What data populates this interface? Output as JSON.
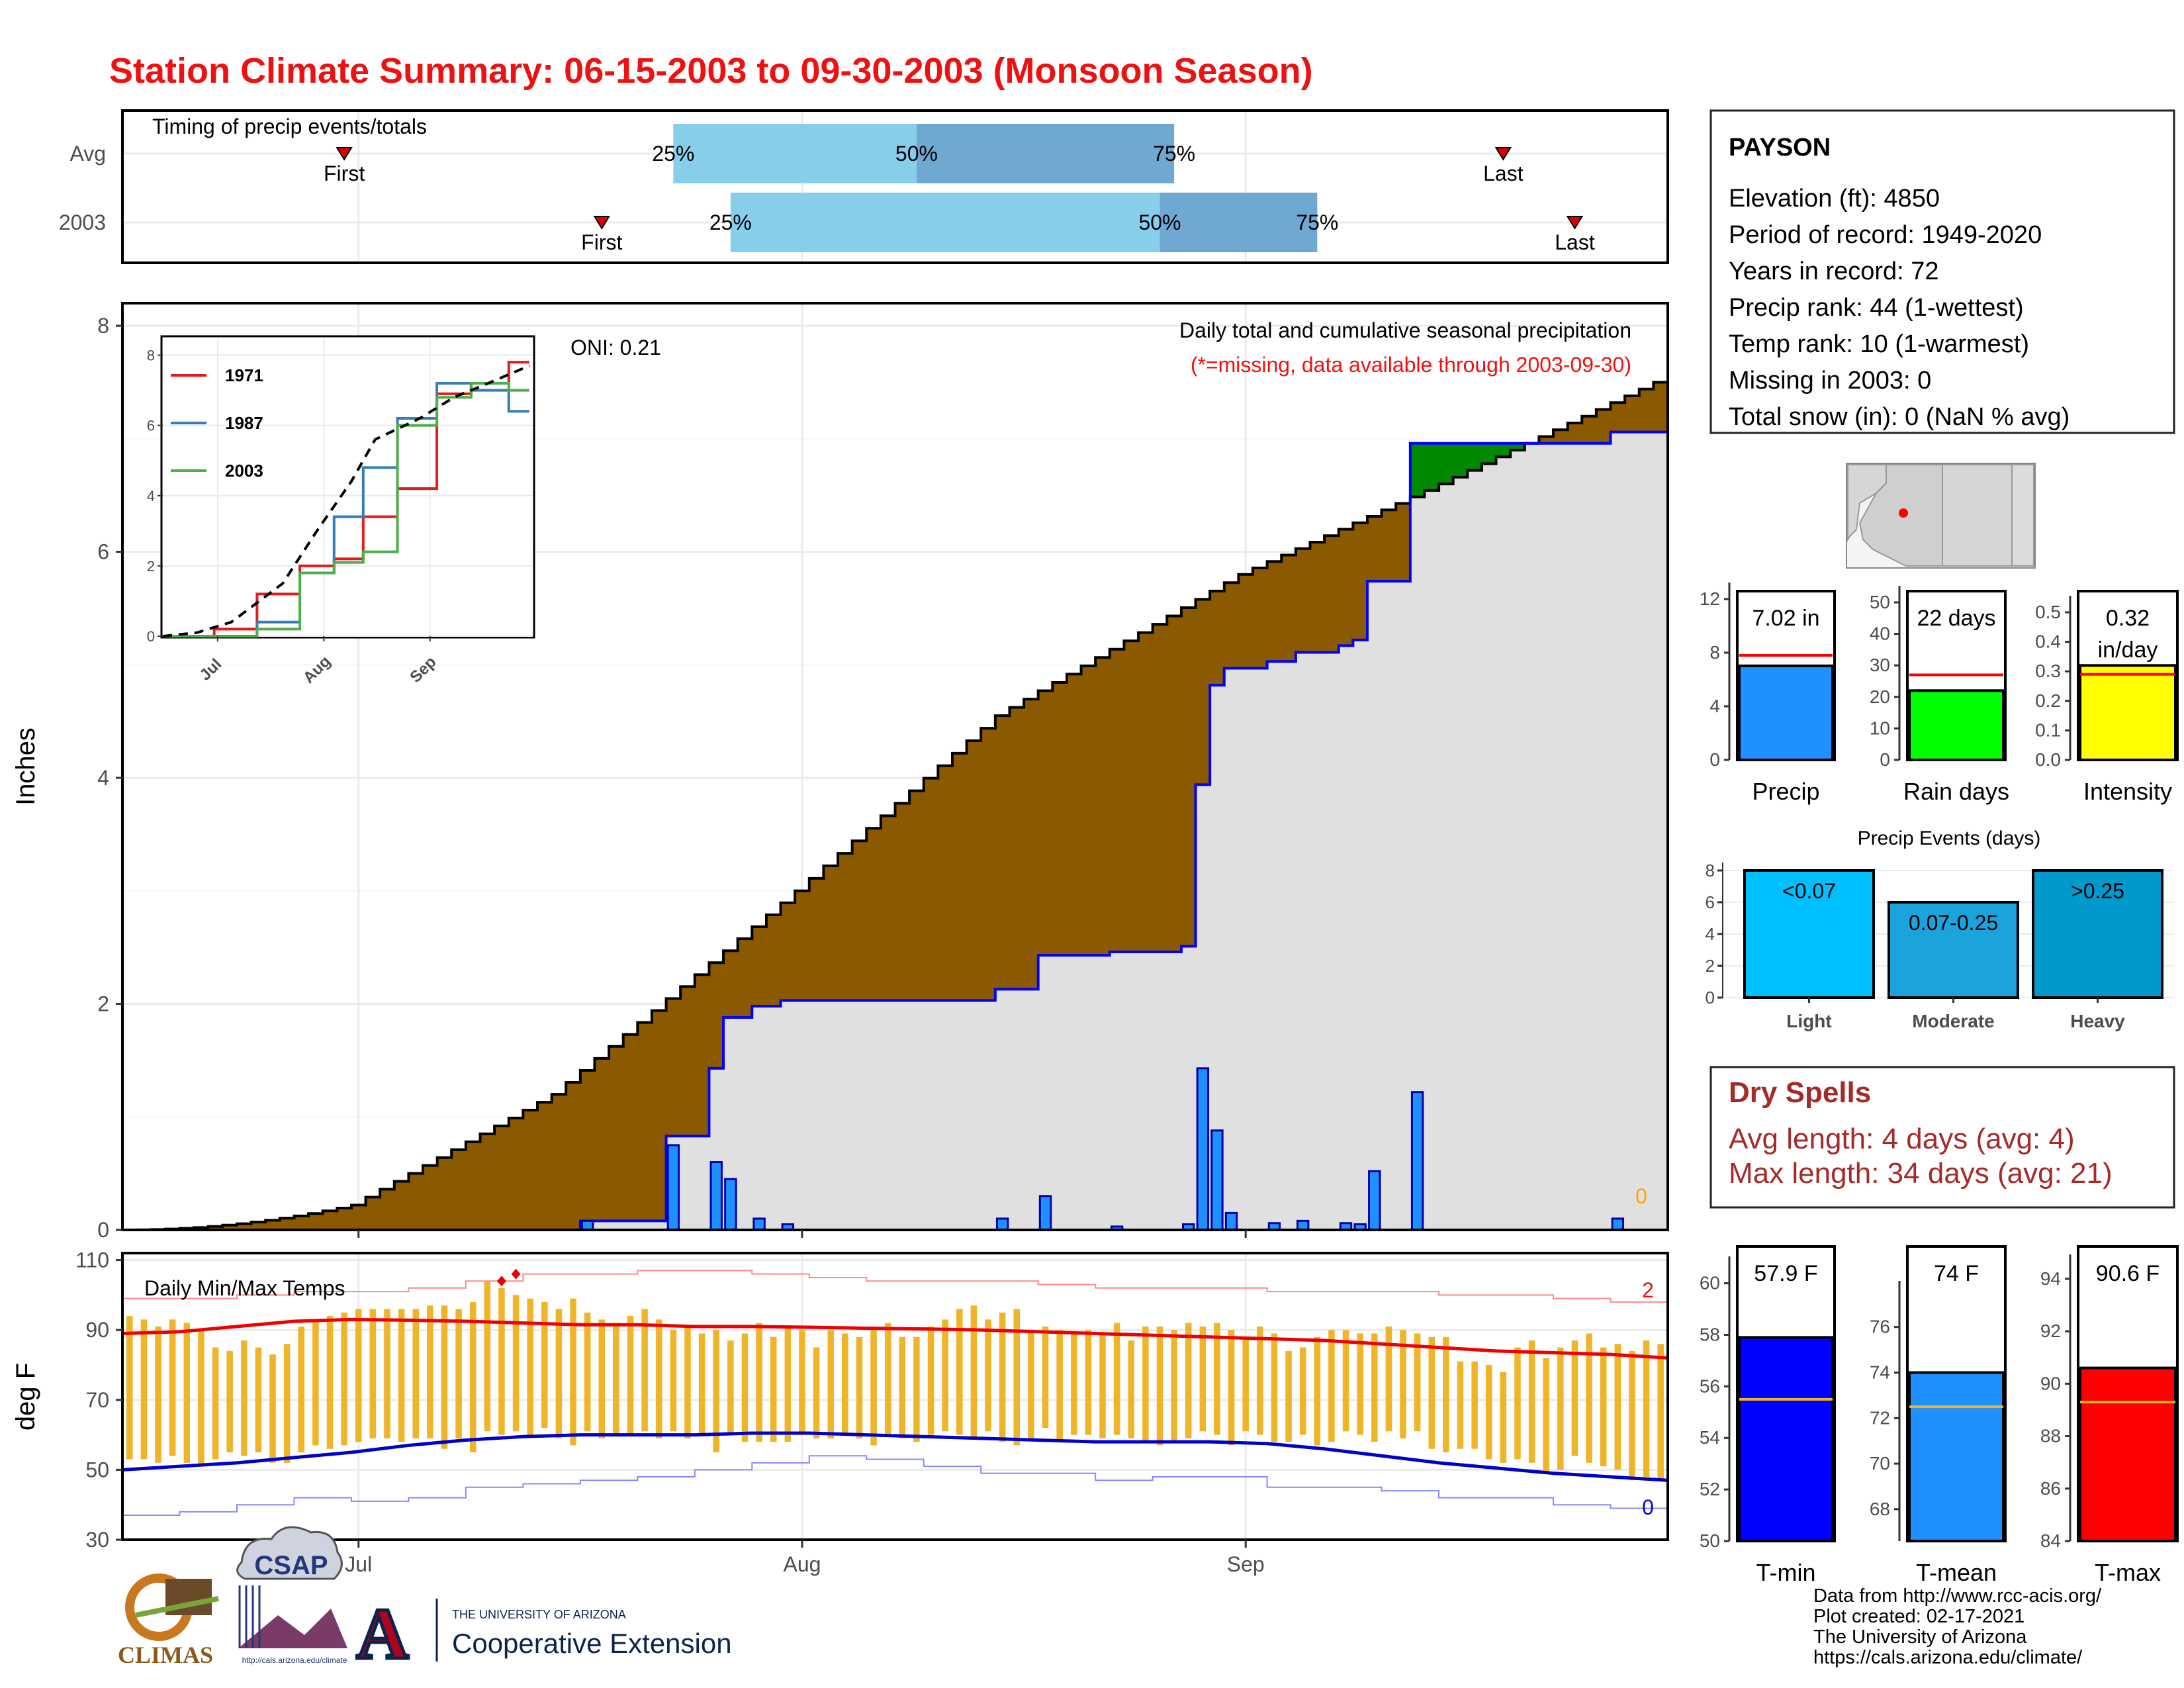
{
  "title": "Station Climate Summary: 06-15-2003 to 09-30-2003 (Monsoon Season)",
  "colors": {
    "title": "#ee1111",
    "cum_fill": "#8b5a00",
    "surplus_fill": "#008800",
    "avg_area": "#e0e0e0",
    "daily_bar": "#1e90ff",
    "avg_line": "#0000ff",
    "temp_bar": "#f0b429",
    "q_light": "#87ceeb",
    "q_dark": "#6fa8d0"
  },
  "station": {
    "name": "PAYSON",
    "lines": [
      "Elevation (ft): 4850",
      "Period of record: 1949-2020",
      "Years in record: 72",
      "Precip rank: 44 (1-wettest)",
      "Temp rank: 10 (1-warmest)",
      "Missing in 2003: 0",
      "Total snow (in): 0 (NaN % avg)"
    ]
  },
  "timing": {
    "label": "Timing of precip events/totals",
    "rows": [
      "Avg",
      "2003"
    ],
    "first_label": "First",
    "last_label": "Last",
    "q_labels": [
      "25%",
      "50%",
      "75%"
    ],
    "avg": {
      "first": "2003-06-30",
      "q25": "2003-07-23",
      "q50": "2003-08-09",
      "q75": "2003-08-27",
      "last": "2003-09-19"
    },
    "y2003": {
      "first": "2003-07-18",
      "q25": "2003-07-27",
      "q50": "2003-08-26",
      "q75": "2003-09-06",
      "last": "2003-09-24"
    }
  },
  "main": {
    "ylabel": "Inches",
    "yticks": [
      0,
      2,
      4,
      6,
      8
    ],
    "xticks": [
      "Jul",
      "Aug",
      "Sep"
    ],
    "oni": "ONI: 0.21",
    "desc1": "Daily total and cumulative seasonal precipitation",
    "desc2": "(*=missing, data available through 2003-09-30)",
    "missing_count": "0"
  },
  "inset": {
    "yticks": [
      "0",
      "2",
      "4",
      "6",
      "8"
    ],
    "xticks": [
      "Jul",
      "Aug",
      "Sep"
    ],
    "legend": [
      {
        "name": "1971",
        "color": "#e41a1c"
      },
      {
        "name": "1987",
        "color": "#377eb8"
      },
      {
        "name": "2003",
        "color": "#4daf4a"
      }
    ]
  },
  "temps": {
    "ylabel": "deg F",
    "label": "Daily Min/Max Temps",
    "yticks": [
      30,
      50,
      70,
      90,
      110
    ],
    "xticks": [
      "Jul",
      "Aug",
      "Sep"
    ],
    "record_high_count": "2",
    "record_low_count": "0"
  },
  "gauges": {
    "precip": {
      "value_label": "7.02 in",
      "axis_label": "Precip",
      "yticks": [
        "0",
        "4",
        "8",
        "12"
      ]
    },
    "rain_days": {
      "value_label": "22 days",
      "axis_label": "Rain days",
      "yticks": [
        "0",
        "10",
        "20",
        "30",
        "40",
        "50"
      ]
    },
    "intensity": {
      "value_label1": "0.32",
      "value_label2": "in/day",
      "axis_label": "Intensity",
      "yticks": [
        "0.0",
        "0.1",
        "0.2",
        "0.3",
        "0.4",
        "0.5"
      ]
    }
  },
  "events": {
    "title": "Precip Events (days)",
    "yticks": [
      "0",
      "2",
      "4",
      "6",
      "8"
    ],
    "bars": [
      {
        "label": "<0.07",
        "axis": "Light",
        "color": "#00bfff"
      },
      {
        "label": "0.07-0.25",
        "axis": "Moderate",
        "color": "#1aa3dd"
      },
      {
        "label": ">0.25",
        "axis": "Heavy",
        "color": "#0099cc"
      }
    ]
  },
  "dry": {
    "title": "Dry Spells",
    "avg_line": "Avg length: 4 days (avg: 4)",
    "max_line": "Max length: 34 days (avg: 21)"
  },
  "temp_gauges": {
    "tmin": {
      "value_label": "57.9 F",
      "axis_label": "T-min",
      "yticks": [
        "50",
        "52",
        "54",
        "56",
        "58",
        "60"
      ]
    },
    "tmean": {
      "value_label": "74 F",
      "axis_label": "T-mean",
      "yticks": [
        "68",
        "70",
        "72",
        "74",
        "76"
      ]
    },
    "tmax": {
      "value_label": "90.6 F",
      "axis_label": "T-max",
      "yticks": [
        "84",
        "86",
        "88",
        "90",
        "92",
        "94"
      ]
    }
  },
  "footer": [
    "Data from http://www.rcc-acis.org/",
    "Plot created: 02-17-2021",
    "The University of Arizona",
    "https://cals.arizona.edu/climate/"
  ],
  "logos": {
    "climas": "CLIMAS",
    "csap": "CSAP",
    "csap_url": "http://cals.arizona.edu/climate",
    "ua_line1": "THE UNIVERSITY OF ARIZONA",
    "ua_line2": "Cooperative Extension",
    "ua_letter": "A"
  },
  "chart_data": [
    {
      "type": "area",
      "title": "Daily total and cumulative seasonal precipitation",
      "ylabel": "Inches",
      "ylim": [
        0,
        8.2
      ],
      "x_start": "2003-06-15",
      "x_end": "2003-09-30",
      "series": [
        {
          "name": "2003 daily precip",
          "values": {
            "2003-07-17": 0.08,
            "2003-07-23": 0.75,
            "2003-07-26": 0.6,
            "2003-07-27": 0.45,
            "2003-07-29": 0.1,
            "2003-07-31": 0.05,
            "2003-08-15": 0.1,
            "2003-08-18": 0.3,
            "2003-08-23": 0.03,
            "2003-08-28": 0.05,
            "2003-08-29": 1.43,
            "2003-08-30": 0.88,
            "2003-08-31": 0.15,
            "2003-09-03": 0.06,
            "2003-09-05": 0.08,
            "2003-09-08": 0.06,
            "2003-09-09": 0.05,
            "2003-09-10": 0.52,
            "2003-09-13": 1.22,
            "2003-09-27": 0.1
          }
        },
        {
          "name": "2003 cumulative precip",
          "cumulative_of": "2003 daily precip"
        },
        {
          "name": "Average cumulative precip",
          "values": {
            "2003-06-15": 0.0,
            "2003-07-01": 0.22,
            "2003-07-15": 1.2,
            "2003-08-01": 3.0,
            "2003-08-15": 4.55,
            "2003-09-01": 5.8,
            "2003-09-15": 6.6,
            "2003-09-30": 7.5
          }
        }
      ]
    },
    {
      "type": "line",
      "title": "",
      "ylim": [
        0,
        8.5
      ],
      "x_start": "2003-06-15",
      "x_end": "2003-09-30",
      "series": [
        {
          "name": "1971",
          "values": [
            0,
            0,
            0.2,
            1.2,
            2.0,
            2.2,
            3.4,
            4.2,
            6.9,
            7.2,
            7.8
          ]
        },
        {
          "name": "1987",
          "values": [
            0,
            0,
            0,
            0.4,
            1.8,
            3.4,
            4.8,
            6.2,
            7.2,
            7.0,
            6.4
          ]
        },
        {
          "name": "2003",
          "values": [
            0,
            0,
            0,
            0.2,
            1.8,
            2.1,
            2.4,
            6.0,
            6.8,
            7.2,
            7.0
          ]
        },
        {
          "name": "average",
          "values": [
            0,
            0.1,
            0.4,
            1.5,
            3.0,
            4.4,
            5.6,
            6.2,
            6.8,
            7.2,
            7.7
          ]
        }
      ]
    },
    {
      "type": "bar",
      "title": "Daily Min/Max Temps",
      "ylabel": "deg F",
      "ylim": [
        30,
        112
      ],
      "x_start": "2003-06-15",
      "x_end": "2003-09-30",
      "series": [
        {
          "name": "Daily max",
          "values": [
            94,
            93,
            91,
            93,
            92,
            90,
            85,
            84,
            87,
            85,
            83,
            86,
            91,
            93,
            94,
            95,
            96,
            96,
            96,
            96,
            96,
            97,
            97,
            96,
            98,
            104,
            102,
            100,
            99,
            98,
            96,
            99,
            95,
            93,
            92,
            94,
            96,
            93,
            90,
            91,
            89,
            90,
            87,
            89,
            92,
            88,
            91,
            90,
            85,
            90,
            89,
            88,
            91,
            92,
            88,
            88,
            91,
            93,
            96,
            97,
            93,
            95,
            96,
            90,
            91,
            90,
            89,
            90,
            89,
            92,
            87,
            91,
            91,
            90,
            92,
            91,
            92,
            90,
            88,
            91,
            89,
            84,
            85,
            88,
            90,
            90,
            89,
            89,
            91,
            90,
            89,
            88,
            88,
            81,
            81,
            80,
            78,
            85,
            87,
            82,
            85,
            87,
            89,
            85,
            86,
            84,
            87,
            86,
            89,
            89,
            87
          ]
        },
        {
          "name": "Daily min",
          "values": [
            53,
            53,
            52,
            54,
            52,
            51,
            53,
            55,
            54,
            55,
            52,
            52,
            55,
            57,
            56,
            57,
            58,
            59,
            59,
            58,
            59,
            59,
            56,
            59,
            55,
            61,
            60,
            61,
            60,
            62,
            59,
            57,
            61,
            59,
            60,
            60,
            61,
            59,
            61,
            59,
            60,
            55,
            60,
            58,
            58,
            58,
            58,
            60,
            59,
            59,
            60,
            59,
            57,
            60,
            59,
            58,
            60,
            61,
            60,
            59,
            61,
            58,
            57,
            59,
            62,
            58,
            60,
            60,
            59,
            60,
            59,
            58,
            57,
            58,
            59,
            61,
            60,
            57,
            61,
            60,
            58,
            58,
            60,
            57,
            58,
            61,
            60,
            58,
            61,
            59,
            61,
            56,
            55,
            56,
            56,
            53,
            52,
            53,
            52,
            49,
            50,
            54,
            52,
            51,
            50,
            47,
            48,
            47,
            52,
            50,
            50
          ]
        },
        {
          "name": "Average max",
          "values": [
            89,
            89.5,
            91,
            92.5,
            93,
            92.8,
            92.5,
            92,
            91.5,
            91.5,
            91,
            91,
            90.8,
            90.5,
            90.3,
            90,
            89.5,
            89,
            88.5,
            88,
            87.5,
            87,
            86,
            85,
            84,
            83.5,
            83,
            82
          ]
        },
        {
          "name": "Average min",
          "values": [
            50,
            51,
            52,
            53.5,
            55,
            57,
            58.5,
            59.5,
            60,
            60,
            60,
            60.5,
            60.5,
            60,
            59.5,
            59,
            58.5,
            58,
            58,
            58,
            57.5,
            56,
            54,
            52,
            50.5,
            49,
            48,
            47
          ]
        },
        {
          "name": "Record high",
          "values": [
            99,
            99,
            100,
            101,
            101,
            102,
            104,
            106,
            106,
            107,
            107,
            106,
            105,
            104,
            104,
            104,
            103,
            102,
            102,
            102,
            101,
            101,
            101,
            100,
            100,
            99,
            98,
            98
          ]
        },
        {
          "name": "Record low",
          "values": [
            37,
            38,
            40,
            42,
            41,
            42,
            45,
            46,
            47,
            48,
            50,
            52,
            54,
            53,
            51,
            49,
            49,
            47,
            48,
            48,
            45,
            45,
            44,
            42,
            42,
            40,
            39,
            37
          ]
        }
      ]
    },
    {
      "type": "bar",
      "categories": [
        "Precip",
        "Rain days",
        "Intensity"
      ],
      "series": [
        {
          "name": "2003",
          "values": [
            7.02,
            22,
            0.32
          ]
        },
        {
          "name": "average",
          "values": [
            7.8,
            27,
            0.29
          ]
        }
      ]
    },
    {
      "type": "bar",
      "title": "Precip Events (days)",
      "categories": [
        "Light",
        "Moderate",
        "Heavy"
      ],
      "series": [
        {
          "name": "days",
          "values": [
            8,
            6,
            8
          ]
        }
      ],
      "ylim": [
        0,
        8.5
      ]
    },
    {
      "type": "bar",
      "categories": [
        "T-min",
        "T-mean",
        "T-max"
      ],
      "series": [
        {
          "name": "2003",
          "values": [
            57.9,
            74,
            90.6
          ]
        },
        {
          "name": "average",
          "values": [
            55.5,
            72.5,
            89.3
          ]
        }
      ]
    }
  ]
}
